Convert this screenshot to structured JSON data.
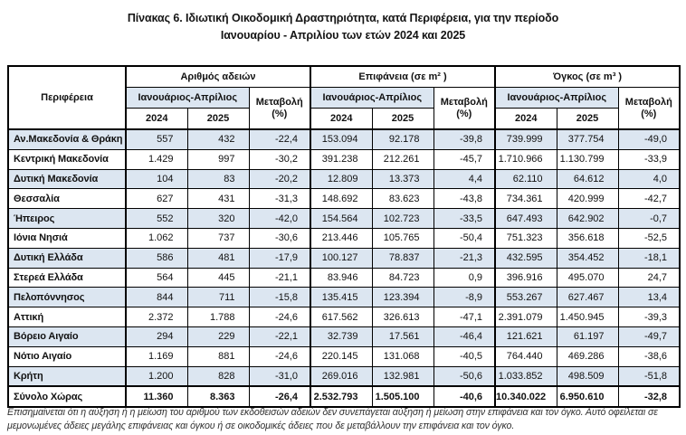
{
  "title": {
    "line1": "Πίνακας 6. Ιδιωτική  Οικοδομική Δραστηριότητα, κατά Περιφέρεια, για την περίοδο",
    "line2": "Ιανουαρίου - Απριλίου των ετών 2024 και 2025"
  },
  "table": {
    "region_header": "Περιφέρεια",
    "period_header": "Ιανουάριος-Απρίλιος",
    "change_label": "Μεταβολή",
    "change_unit": "(%)",
    "years": [
      "2024",
      "2025"
    ],
    "groups": [
      {
        "label": "Αριθμός αδειών"
      },
      {
        "label": "Επιφάνεια (σε m² )"
      },
      {
        "label": "Όγκος (σε m³ )"
      }
    ],
    "shade_color": "#dce6f1",
    "rows": [
      {
        "region": "Αν.Μακεδονία & Θράκη",
        "values": [
          "557",
          "432",
          "-22,4",
          "153.094",
          "92.178",
          "-39,8",
          "739.999",
          "377.754",
          "-49,0"
        ]
      },
      {
        "region": "Κεντρική Μακεδονία",
        "values": [
          "1.429",
          "997",
          "-30,2",
          "391.238",
          "212.261",
          "-45,7",
          "1.710.966",
          "1.130.799",
          "-33,9"
        ]
      },
      {
        "region": "Δυτική Μακεδονία",
        "values": [
          "104",
          "83",
          "-20,2",
          "12.809",
          "13.373",
          "4,4",
          "62.110",
          "64.612",
          "4,0"
        ]
      },
      {
        "region": "Θεσσαλία",
        "values": [
          "627",
          "431",
          "-31,3",
          "148.692",
          "83.623",
          "-43,8",
          "734.361",
          "420.999",
          "-42,7"
        ]
      },
      {
        "region": "Ήπειρος",
        "values": [
          "552",
          "320",
          "-42,0",
          "154.564",
          "102.723",
          "-33,5",
          "647.493",
          "642.902",
          "-0,7"
        ]
      },
      {
        "region": "Ιόνια Νησιά",
        "values": [
          "1.062",
          "737",
          "-30,6",
          "213.446",
          "105.765",
          "-50,4",
          "751.323",
          "356.618",
          "-52,5"
        ]
      },
      {
        "region": "Δυτική Ελλάδα",
        "values": [
          "586",
          "481",
          "-17,9",
          "100.127",
          "78.837",
          "-21,3",
          "432.595",
          "354.452",
          "-18,1"
        ]
      },
      {
        "region": "Στερεά Ελλάδα",
        "values": [
          "564",
          "445",
          "-21,1",
          "83.946",
          "84.723",
          "0,9",
          "396.916",
          "495.070",
          "24,7"
        ]
      },
      {
        "region": "Πελοπόννησος",
        "values": [
          "844",
          "711",
          "-15,8",
          "135.415",
          "123.394",
          "-8,9",
          "553.267",
          "627.467",
          "13,4"
        ]
      },
      {
        "region": "Αττική",
        "values": [
          "2.372",
          "1.788",
          "-24,6",
          "617.562",
          "326.613",
          "-47,1",
          "2.391.079",
          "1.450.945",
          "-39,3"
        ]
      },
      {
        "region": "Βόρειο Αιγαίο",
        "values": [
          "294",
          "229",
          "-22,1",
          "32.739",
          "17.561",
          "-46,4",
          "121.621",
          "61.197",
          "-49,7"
        ]
      },
      {
        "region": "Νότιο Αιγαίο",
        "values": [
          "1.169",
          "881",
          "-24,6",
          "220.145",
          "131.068",
          "-40,5",
          "764.440",
          "469.286",
          "-38,6"
        ]
      },
      {
        "region": "Κρήτη",
        "values": [
          "1.200",
          "828",
          "-31,0",
          "269.016",
          "132.981",
          "-50,6",
          "1.033.852",
          "498.509",
          "-51,8"
        ]
      },
      {
        "region": "Σύνολο Χώρας",
        "values": [
          "11.360",
          "8.363",
          "-26,4",
          "2.532.793",
          "1.505.100",
          "-40,6",
          "10.340.022",
          "6.950.610",
          "-32,8"
        ]
      }
    ]
  },
  "footnote": "Επισημαίνεται ότι η αύξηση ή η μείωση του αριθμού των εκδοθεισών αδειών δεν συνεπάγεται αύξηση ή μείωση στην επιφάνεια και τον όγκο. Αυτό οφείλεται σε μεμονωμένες άδειες μεγάλης επιφάνειας και όγκου ή σε οικοδομικές άδειες που δε μεταβάλλουν την επιφάνεια και τον όγκο."
}
